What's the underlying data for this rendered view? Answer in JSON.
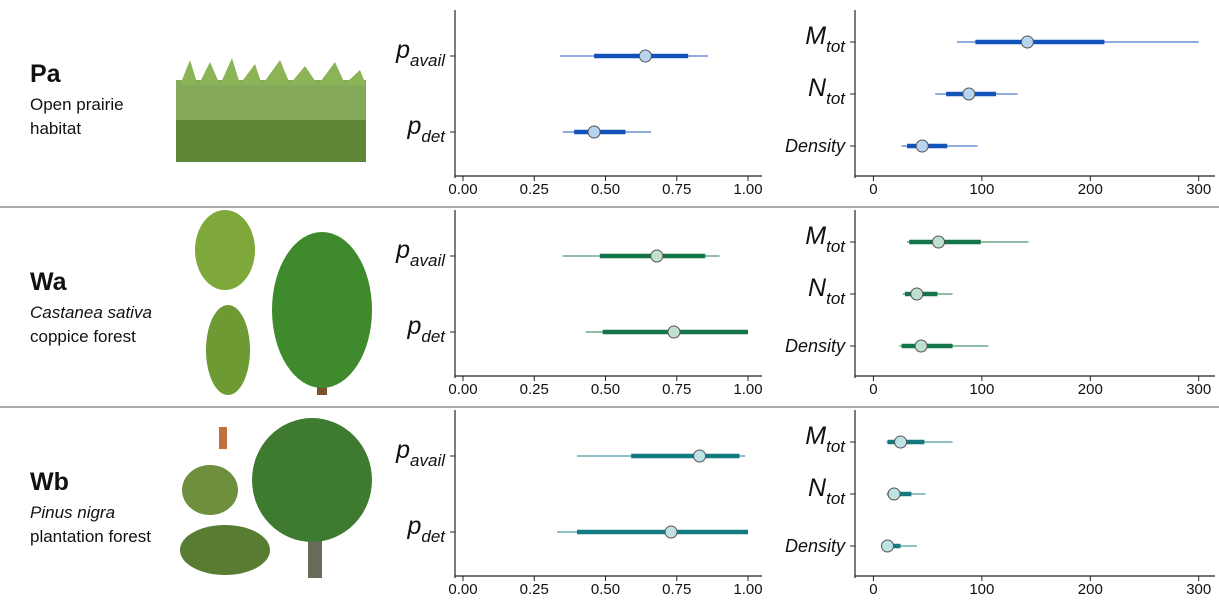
{
  "rows": [
    {
      "code": "Pa",
      "lines": [
        "Open prairie",
        "habitat"
      ]
    },
    {
      "code": "Wa",
      "lines": [
        "Castanea sativa",
        "coppice forest"
      ]
    },
    {
      "code": "Wb",
      "lines": [
        "Pinus nigra",
        "plantation forest"
      ]
    }
  ],
  "chart_data": [
    {
      "type": "interval",
      "color": "#1352b8",
      "point_color": "#b8d4ee",
      "categories": [
        {
          "base": "p",
          "sub": "avail"
        },
        {
          "base": "p",
          "sub": "det"
        }
      ],
      "values": [
        0.64,
        0.46
      ],
      "inner": [
        [
          0.46,
          0.79
        ],
        [
          0.39,
          0.57
        ]
      ],
      "outer": [
        [
          0.34,
          0.86
        ],
        [
          0.35,
          0.66
        ]
      ],
      "xlim": [
        -0.028,
        1.049
      ],
      "xticks": [
        {
          "value": 0,
          "label": "0.00"
        },
        {
          "value": 0.25,
          "label": "0.25"
        },
        {
          "value": 0.5,
          "label": "0.50"
        },
        {
          "value": 0.75,
          "label": "0.75"
        },
        {
          "value": 1,
          "label": "1.00"
        }
      ]
    },
    {
      "type": "interval",
      "color": "#1352b8",
      "point_color": "#b8d4ee",
      "categories": [
        {
          "base": "M",
          "sub": "tot"
        },
        {
          "base": "N",
          "sub": "tot"
        },
        {
          "base": "Density"
        }
      ],
      "values": [
        142,
        88,
        45
      ],
      "inner": [
        [
          94,
          213
        ],
        [
          67,
          113
        ],
        [
          31,
          68
        ]
      ],
      "outer": [
        [
          77,
          300
        ],
        [
          57,
          133
        ],
        [
          26,
          96
        ]
      ],
      "xlim": [
        -17,
        315
      ],
      "xticks": [
        0,
        100,
        200,
        300
      ]
    },
    {
      "type": "interval",
      "color": "#137549",
      "point_color": "#bfe0cf",
      "categories": [
        {
          "base": "p",
          "sub": "avail"
        },
        {
          "base": "p",
          "sub": "det"
        }
      ],
      "values": [
        0.68,
        0.74
      ],
      "inner": [
        [
          0.48,
          0.85
        ],
        [
          0.49,
          1.0
        ]
      ],
      "outer": [
        [
          0.35,
          0.9
        ],
        [
          0.43,
          1.0
        ]
      ],
      "xlim": [
        -0.028,
        1.049
      ],
      "xticks": [
        {
          "value": 0,
          "label": "0.00"
        },
        {
          "value": 0.25,
          "label": "0.25"
        },
        {
          "value": 0.5,
          "label": "0.50"
        },
        {
          "value": 0.75,
          "label": "0.75"
        },
        {
          "value": 1,
          "label": "1.00"
        }
      ]
    },
    {
      "type": "interval",
      "color": "#137549",
      "point_color": "#bfe0cf",
      "categories": [
        {
          "base": "M",
          "sub": "tot"
        },
        {
          "base": "N",
          "sub": "tot"
        },
        {
          "base": "Density"
        }
      ],
      "values": [
        60,
        40,
        44
      ],
      "inner": [
        [
          33,
          99
        ],
        [
          29,
          59
        ],
        [
          26,
          73
        ]
      ],
      "outer": [
        [
          31,
          143
        ],
        [
          27,
          73
        ],
        [
          24,
          106
        ]
      ],
      "xlim": [
        -17,
        315
      ],
      "xticks": [
        0,
        100,
        200,
        300
      ]
    },
    {
      "type": "interval",
      "color": "#137a80",
      "point_color": "#bfe2e4",
      "categories": [
        {
          "base": "p",
          "sub": "avail"
        },
        {
          "base": "p",
          "sub": "det"
        }
      ],
      "values": [
        0.83,
        0.73
      ],
      "inner": [
        [
          0.59,
          0.97
        ],
        [
          0.4,
          1.0
        ]
      ],
      "outer": [
        [
          0.4,
          0.99
        ],
        [
          0.33,
          1.0
        ]
      ],
      "xlim": [
        -0.028,
        1.049
      ],
      "xticks": [
        {
          "value": 0,
          "label": "0.00"
        },
        {
          "value": 0.25,
          "label": "0.25"
        },
        {
          "value": 0.5,
          "label": "0.50"
        },
        {
          "value": 0.75,
          "label": "0.75"
        },
        {
          "value": 1,
          "label": "1.00"
        }
      ]
    },
    {
      "type": "interval",
      "color": "#137a80",
      "point_color": "#bfe2e4",
      "categories": [
        {
          "base": "M",
          "sub": "tot"
        },
        {
          "base": "N",
          "sub": "tot"
        },
        {
          "base": "Density"
        }
      ],
      "values": [
        25,
        19,
        13
      ],
      "inner": [
        [
          13,
          47
        ],
        [
          13,
          35
        ],
        [
          9,
          25
        ]
      ],
      "outer": [
        [
          12,
          73
        ],
        [
          12,
          48
        ],
        [
          8,
          40
        ]
      ],
      "xlim": [
        -17,
        315
      ],
      "xticks": [
        0,
        100,
        200,
        300
      ]
    }
  ]
}
